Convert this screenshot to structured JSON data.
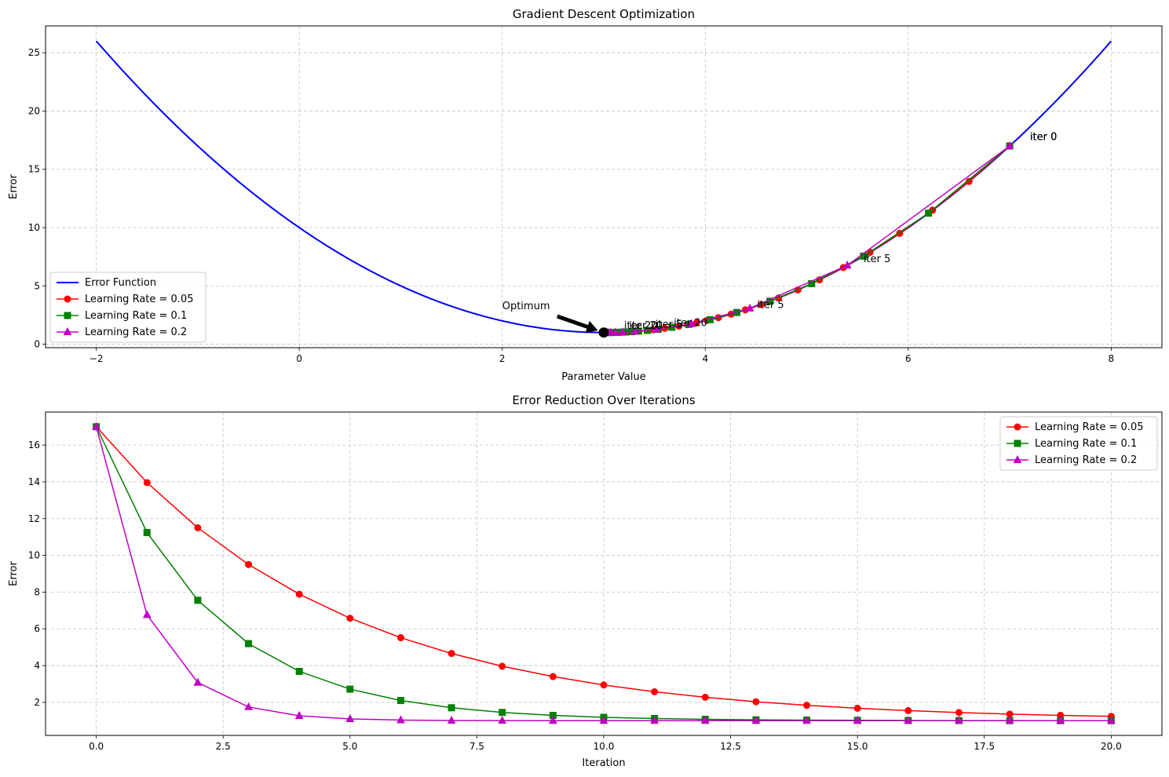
{
  "chart_data": [
    {
      "type": "line",
      "title": "Gradient Descent Optimization",
      "xlabel": "Parameter Value",
      "ylabel": "Error",
      "xlim": [
        -2.5,
        8.5
      ],
      "ylim": [
        -0.3,
        27.3
      ],
      "xticks": [
        -2,
        0,
        2,
        4,
        6,
        8
      ],
      "xtick_labels": [
        "−2",
        "0",
        "2",
        "4",
        "6",
        "8"
      ],
      "yticks": [
        0,
        5,
        10,
        15,
        20,
        25
      ],
      "ytick_labels": [
        "0",
        "5",
        "10",
        "15",
        "20",
        "25"
      ],
      "grid": true,
      "legend_position": "lower-left",
      "curve": {
        "name": "Error Function",
        "color": "#0000ff",
        "formula": "(x-3)^2+1",
        "x_range": [
          -2,
          8
        ]
      },
      "series": [
        {
          "name": "Learning Rate = 0.05",
          "color": "#ff0000",
          "marker": "circle",
          "x": [
            7.0,
            6.6,
            6.24,
            5.916,
            5.624,
            5.362,
            5.126,
            4.913,
            4.722,
            4.55,
            4.395,
            4.255,
            4.13,
            4.017,
            3.915,
            3.824,
            3.741,
            3.667,
            3.601,
            3.541,
            3.487
          ],
          "y": [
            17.0,
            13.96,
            11.5,
            9.503,
            7.886,
            6.578,
            5.517,
            4.659,
            3.964,
            3.402,
            2.945,
            2.576,
            2.276,
            2.034,
            1.837,
            1.678,
            1.549,
            1.445,
            1.361,
            1.292,
            1.237
          ]
        },
        {
          "name": "Learning Rate = 0.1",
          "color": "#008000",
          "marker": "square",
          "x": [
            7.0,
            6.2,
            5.56,
            5.048,
            4.638,
            4.311,
            4.049,
            3.839,
            3.671,
            3.537,
            3.429,
            3.344,
            3.275,
            3.22,
            3.176,
            3.141,
            3.113,
            3.09,
            3.072,
            3.058,
            3.046
          ],
          "y": [
            17.0,
            11.24,
            7.554,
            5.194,
            3.684,
            2.718,
            2.099,
            1.704,
            1.45,
            1.288,
            1.184,
            1.118,
            1.076,
            1.048,
            1.031,
            1.02,
            1.013,
            1.008,
            1.005,
            1.003,
            1.002
          ]
        },
        {
          "name": "Learning Rate = 0.2",
          "color": "#bf00bf",
          "marker": "triangle",
          "x": [
            7.0,
            5.4,
            4.44,
            3.864,
            3.518,
            3.311,
            3.187,
            3.112,
            3.067,
            3.04,
            3.024,
            3.015,
            3.009,
            3.005,
            3.003,
            3.002,
            3.001,
            3.001,
            3.0,
            3.0,
            3.0
          ],
          "y": [
            17.0,
            6.76,
            3.074,
            1.746,
            1.269,
            1.097,
            1.035,
            1.013,
            1.004,
            1.002,
            1.001,
            1.0,
            1.0,
            1.0,
            1.0,
            1.0,
            1.0,
            1.0,
            1.0,
            1.0,
            1.0
          ]
        }
      ],
      "optimum": {
        "x": 3.0,
        "y": 1.0,
        "label": "Optimum",
        "text_x": 2.0,
        "text_y": 3.0
      },
      "annotations": [
        {
          "text": "iter 0",
          "x": 7.2,
          "y": 17.5
        },
        {
          "text": "iter 0",
          "x": 7.2,
          "y": 17.5
        },
        {
          "text": "iter 0",
          "x": 7.2,
          "y": 17.5
        },
        {
          "text": "iter 5",
          "x": 4.51,
          "y": 3.1
        },
        {
          "text": "iter 5",
          "x": 5.56,
          "y": 7.05
        },
        {
          "text": "iter 5",
          "x": 3.51,
          "y": 1.4
        },
        {
          "text": "iter 20",
          "x": 3.69,
          "y": 1.55
        },
        {
          "text": "iter 20",
          "x": 3.25,
          "y": 1.3
        },
        {
          "text": "iter 20",
          "x": 3.2,
          "y": 1.3
        }
      ]
    },
    {
      "type": "line",
      "title": "Error Reduction Over Iterations",
      "xlabel": "Iteration",
      "ylabel": "Error",
      "xlim": [
        -1.0,
        21.0
      ],
      "ylim": [
        0.2,
        17.8
      ],
      "xticks": [
        0,
        2.5,
        5,
        7.5,
        10,
        12.5,
        15,
        17.5,
        20
      ],
      "xtick_labels": [
        "0.0",
        "2.5",
        "5.0",
        "7.5",
        "10.0",
        "12.5",
        "15.0",
        "17.5",
        "20.0"
      ],
      "yticks": [
        2,
        4,
        6,
        8,
        10,
        12,
        14,
        16
      ],
      "ytick_labels": [
        "2",
        "4",
        "6",
        "8",
        "10",
        "12",
        "14",
        "16"
      ],
      "grid": true,
      "legend_position": "upper-right",
      "x": [
        0,
        1,
        2,
        3,
        4,
        5,
        6,
        7,
        8,
        9,
        10,
        11,
        12,
        13,
        14,
        15,
        16,
        17,
        18,
        19,
        20
      ],
      "series": [
        {
          "name": "Learning Rate = 0.05",
          "color": "#ff0000",
          "marker": "circle",
          "values": [
            17.0,
            13.96,
            11.5,
            9.503,
            7.886,
            6.578,
            5.517,
            4.659,
            3.964,
            3.402,
            2.945,
            2.576,
            2.276,
            2.034,
            1.837,
            1.678,
            1.549,
            1.445,
            1.361,
            1.292,
            1.237
          ]
        },
        {
          "name": "Learning Rate = 0.1",
          "color": "#008000",
          "marker": "square",
          "values": [
            17.0,
            11.24,
            7.554,
            5.194,
            3.684,
            2.718,
            2.099,
            1.704,
            1.45,
            1.288,
            1.184,
            1.118,
            1.076,
            1.048,
            1.031,
            1.02,
            1.013,
            1.008,
            1.005,
            1.003,
            1.002
          ]
        },
        {
          "name": "Learning Rate = 0.2",
          "color": "#bf00bf",
          "marker": "triangle",
          "values": [
            17.0,
            6.76,
            3.074,
            1.746,
            1.269,
            1.097,
            1.035,
            1.013,
            1.004,
            1.002,
            1.001,
            1.0,
            1.0,
            1.0,
            1.0,
            1.0,
            1.0,
            1.0,
            1.0,
            1.0,
            1.0
          ]
        }
      ]
    }
  ]
}
